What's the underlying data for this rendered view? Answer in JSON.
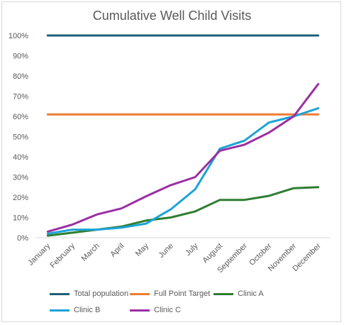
{
  "chart_data": {
    "type": "line",
    "title": "Cumulative Well Child Visits",
    "categories": [
      "January",
      "February",
      "March",
      "April",
      "May",
      "June",
      "July",
      "August",
      "September",
      "October",
      "November",
      "December"
    ],
    "ylim": [
      0,
      1
    ],
    "yticks": [
      "0%",
      "10%",
      "20%",
      "30%",
      "40%",
      "50%",
      "60%",
      "70%",
      "80%",
      "90%",
      "100%"
    ],
    "grid": false,
    "legend_position": "bottom",
    "series": [
      {
        "name": "Total population",
        "color": "#1f5f7a",
        "values": [
          1,
          1,
          1,
          1,
          1,
          1,
          1,
          1,
          1,
          1,
          1,
          1
        ]
      },
      {
        "name": "Full Point Target",
        "color": "#ed7d31",
        "values": [
          0.61,
          0.61,
          0.61,
          0.61,
          0.61,
          0.61,
          0.61,
          0.61,
          0.61,
          0.61,
          0.61,
          0.61
        ]
      },
      {
        "name": "Clinic A",
        "color": "#2e7d32",
        "values": [
          0.01,
          0.025,
          0.04,
          0.055,
          0.085,
          0.1,
          0.13,
          0.187,
          0.187,
          0.207,
          0.245,
          0.25
        ]
      },
      {
        "name": "Clinic B",
        "color": "#1ca3d8",
        "values": [
          0.02,
          0.04,
          0.04,
          0.05,
          0.07,
          0.14,
          0.24,
          0.44,
          0.48,
          0.57,
          0.6,
          0.64
        ]
      },
      {
        "name": "Clinic C",
        "color": "#9b2fa3",
        "values": [
          0.03,
          0.065,
          0.115,
          0.145,
          0.205,
          0.26,
          0.3,
          0.43,
          0.46,
          0.52,
          0.6,
          0.76
        ]
      }
    ]
  }
}
